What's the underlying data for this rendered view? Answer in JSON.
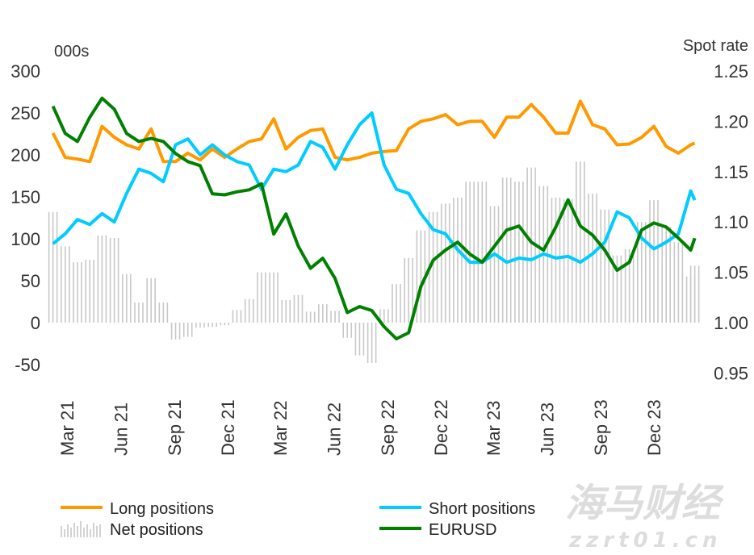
{
  "chart_data": {
    "type": "line",
    "left_axis": {
      "label": "000s",
      "range": [
        -50,
        300
      ],
      "ticks": [
        "300",
        "250",
        "200",
        "150",
        "100",
        "50",
        "0",
        "-50"
      ],
      "tick_values": [
        300,
        250,
        200,
        150,
        100,
        50,
        0,
        -50
      ]
    },
    "right_axis": {
      "label": "Spot rate",
      "range": [
        0.95,
        1.25
      ],
      "ticks": [
        "1.25",
        "1.20",
        "1.15",
        "1.10",
        "1.05",
        "1.00",
        "0.95"
      ],
      "tick_values": [
        1.25,
        1.2,
        1.15,
        1.1,
        1.05,
        1.0,
        0.95
      ]
    },
    "x_ticks": [
      "Mar 21",
      "Jun 21",
      "Sep 21",
      "Dec 21",
      "Mar 22",
      "Jun 22",
      "Sep 22",
      "Dec 22",
      "Mar 23",
      "Jun 23",
      "Sep 23",
      "Dec 23"
    ],
    "x_tick_dates": [
      "2021-03-01",
      "2021-06-01",
      "2021-09-01",
      "2021-12-01",
      "2022-03-01",
      "2022-06-01",
      "2022-09-01",
      "2022-12-01",
      "2023-03-01",
      "2023-06-01",
      "2023-09-01",
      "2023-12-01"
    ],
    "grid": false,
    "legend_position": "bottom",
    "x": [
      "2021-02-05",
      "2021-02-26",
      "2021-03-19",
      "2021-04-09",
      "2021-04-30",
      "2021-05-21",
      "2021-06-11",
      "2021-07-02",
      "2021-07-23",
      "2021-08-13",
      "2021-09-03",
      "2021-09-24",
      "2021-10-15",
      "2021-11-05",
      "2021-11-26",
      "2021-12-17",
      "2022-01-07",
      "2022-01-28",
      "2022-02-18",
      "2022-03-11",
      "2022-04-01",
      "2022-04-22",
      "2022-05-13",
      "2022-06-03",
      "2022-06-24",
      "2022-07-15",
      "2022-08-05",
      "2022-08-26",
      "2022-09-16",
      "2022-10-07",
      "2022-10-28",
      "2022-11-18",
      "2022-12-09",
      "2022-12-30",
      "2023-01-20",
      "2023-02-10",
      "2023-03-03",
      "2023-03-24",
      "2023-04-14",
      "2023-05-05",
      "2023-05-26",
      "2023-06-16",
      "2023-07-07",
      "2023-07-28",
      "2023-08-18",
      "2023-09-08",
      "2023-09-29",
      "2023-10-20",
      "2023-11-10",
      "2023-12-01",
      "2023-12-22",
      "2024-01-12",
      "2024-02-02",
      "2024-02-09"
    ],
    "series": [
      {
        "name": "Long positions",
        "axis": "left",
        "kind": "line",
        "color": "#FF9900",
        "values": [
          226,
          197,
          195,
          192,
          234,
          221,
          212,
          207,
          231,
          192,
          192,
          202,
          194,
          207,
          197,
          207,
          216,
          219,
          243,
          207,
          221,
          229,
          231,
          197,
          194,
          197,
          202,
          204,
          205,
          231,
          240,
          243,
          248,
          236,
          240,
          240,
          221,
          245,
          245,
          260,
          245,
          226,
          226,
          264,
          236,
          231,
          212,
          213,
          221,
          234,
          210,
          202,
          212,
          214
        ]
      },
      {
        "name": "Short positions",
        "axis": "left",
        "kind": "line",
        "color": "#00CCFF",
        "values": [
          94,
          106,
          123,
          117,
          130,
          120,
          154,
          183,
          178,
          168,
          212,
          219,
          200,
          212,
          200,
          192,
          188,
          159,
          183,
          180,
          188,
          216,
          209,
          183,
          212,
          236,
          250,
          188,
          159,
          154,
          130,
          111,
          106,
          87,
          72,
          72,
          82,
          72,
          77,
          75,
          82,
          77,
          79,
          72,
          82,
          96,
          132,
          125,
          101,
          88,
          96,
          106,
          157,
          146
        ]
      },
      {
        "name": "Net positions",
        "axis": "left",
        "kind": "bar",
        "color": "#C8C8C8",
        "values": [
          132,
          91,
          72,
          75,
          104,
          101,
          58,
          24,
          53,
          24,
          -20,
          -17,
          -6,
          -5,
          -3,
          15,
          28,
          60,
          60,
          27,
          33,
          13,
          22,
          14,
          -18,
          -39,
          -48,
          16,
          46,
          77,
          110,
          132,
          142,
          149,
          168,
          168,
          139,
          173,
          168,
          185,
          163,
          149,
          147,
          192,
          154,
          135,
          80,
          88,
          120,
          146,
          114,
          96,
          55,
          68
        ]
      },
      {
        "name": "EURUSD",
        "axis": "right",
        "kind": "line",
        "color": "#008000",
        "values": [
          1.215,
          1.188,
          1.18,
          1.204,
          1.223,
          1.212,
          1.188,
          1.18,
          1.183,
          1.18,
          1.168,
          1.16,
          1.156,
          1.128,
          1.127,
          1.13,
          1.132,
          1.138,
          1.088,
          1.108,
          1.076,
          1.054,
          1.064,
          1.044,
          1.01,
          1.016,
          1.012,
          0.996,
          0.984,
          0.99,
          1.036,
          1.062,
          1.072,
          1.08,
          1.068,
          1.06,
          1.076,
          1.092,
          1.096,
          1.08,
          1.072,
          1.095,
          1.122,
          1.096,
          1.087,
          1.072,
          1.052,
          1.06,
          1.092,
          1.099,
          1.095,
          1.084,
          1.072,
          1.084
        ]
      }
    ]
  },
  "legend": {
    "long": "Long positions",
    "short": "Short positions",
    "net": "Net positions",
    "eurusd": "EURUSD"
  },
  "watermark": {
    "cn": "海马财经",
    "url": "zzrt01.cn"
  }
}
